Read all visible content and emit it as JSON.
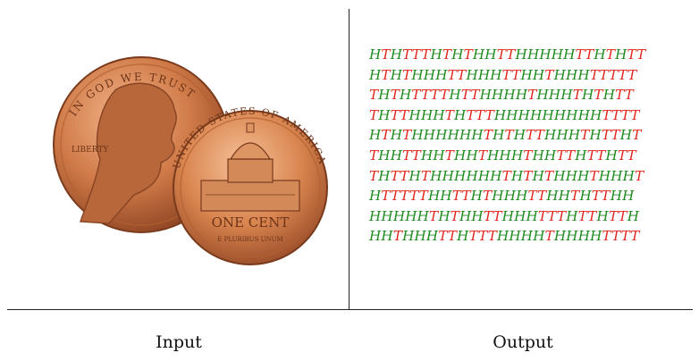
{
  "captions": {
    "input": "Input",
    "output": "Output"
  },
  "coin_text": {
    "front_top": "IN GOD WE TRUST",
    "front_left": "LIBERTY",
    "back_top": "UNITED STATES OF AMERICA",
    "back_value": "ONE CENT",
    "back_motto": "E PLURIBUS UNUM"
  },
  "sequences": [
    "HTHTTTHTHTHHTTHHHHHTTHTHTT",
    "HTHTHHHTTHHHTTHHTHHHTTTTT",
    "THTHTTTTHTTHHHHTHHHTHTHTT",
    "THTTHHHTHTTTHHHHHHHHHTTTT",
    "HTHTHHHHHHTHTHTTHHHTHTTHT",
    "THHTTHHTHHTHHHTHHTTHTTHTT",
    "THTTHTHHHHHHTHTHTHHHTHHHT",
    "HTTTTTHHTTHTHHHTTHHTHTTHH",
    "HHHHHTHTHHTTHHHTTTHTTHTTH",
    "HHTHHHTTHTTTHHHHTHHHHTTTT"
  ],
  "colors": {
    "heads": "#1e8a1e",
    "tails": "#e0251c",
    "copper": "#c9713f"
  }
}
